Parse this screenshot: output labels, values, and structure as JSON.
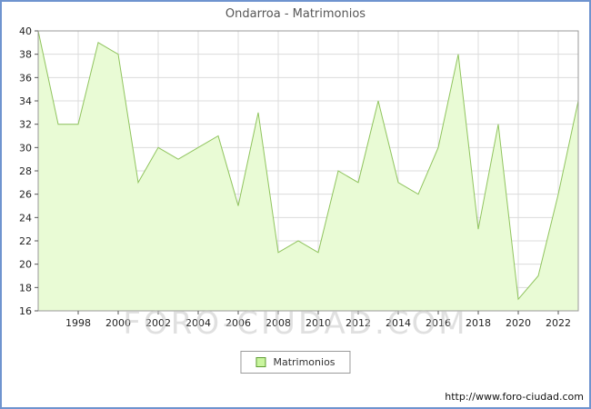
{
  "title": "Ondarroa - Matrimonios",
  "watermark": "FORO-CIUDAD.COM",
  "legend": {
    "label": "Matrimonios"
  },
  "footer": {
    "url": "http://www.foro-ciudad.com"
  },
  "colors": {
    "frame_border": "#6f94cf",
    "area_fill": "#e9fbd5",
    "line": "#90c45e",
    "legend_swatch": "#c9f59e",
    "swatch_border": "#5e9c32",
    "grid": "#dcdcdc",
    "plot_border": "#9a9a9a",
    "axis_text": "#222222",
    "title_text": "#565656"
  },
  "chart_data": {
    "type": "area",
    "title": "Ondarroa - Matrimonios",
    "series_name": "Matrimonios",
    "years": [
      1996,
      1997,
      1998,
      1999,
      2000,
      2001,
      2002,
      2003,
      2004,
      2005,
      2006,
      2007,
      2008,
      2009,
      2010,
      2011,
      2012,
      2013,
      2014,
      2015,
      2016,
      2017,
      2018,
      2019,
      2020,
      2021,
      2022,
      2023
    ],
    "values": [
      40,
      32,
      32,
      39,
      38,
      27,
      30,
      29,
      30,
      31,
      25,
      33,
      21,
      22,
      21,
      28,
      27,
      34,
      27,
      26,
      30,
      38,
      23,
      32,
      17,
      19,
      26,
      34
    ],
    "ylim": [
      16,
      40
    ],
    "ytick_step": 2,
    "xticks": [
      1998,
      2000,
      2002,
      2004,
      2006,
      2008,
      2010,
      2012,
      2014,
      2016,
      2018,
      2020,
      2022
    ],
    "grid": true,
    "legend_position": "bottom"
  }
}
